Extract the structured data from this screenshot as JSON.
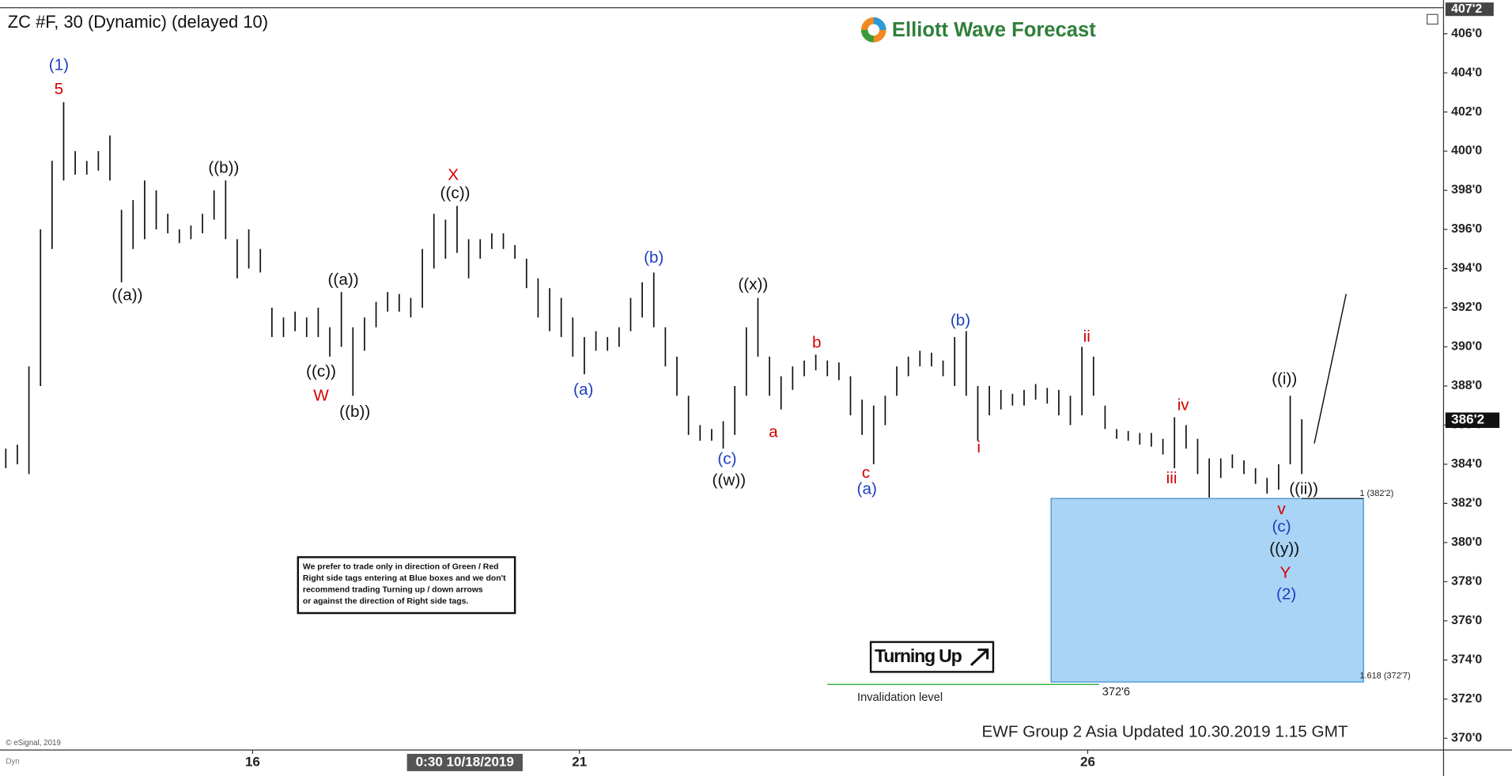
{
  "header": {
    "symbol": "ZC #F, 30 (Dynamic) (delayed 10)",
    "logo": "Elliott Wave Forecast"
  },
  "chart_data": {
    "type": "range",
    "high": [
      384.8,
      385,
      389,
      396,
      399.5,
      402.5,
      400,
      399.5,
      400,
      400.8,
      397,
      397.5,
      398.5,
      398,
      396.8,
      396,
      396.2,
      396.8,
      398,
      398.5,
      395.5,
      396,
      395,
      392,
      391.5,
      391.8,
      391.5,
      392,
      391,
      392.8,
      391,
      391.5,
      392.3,
      392.8,
      392.7,
      392.5,
      395,
      396.8,
      396.5,
      397.2,
      395.5,
      395.5,
      395.8,
      395.8,
      395.2,
      394.5,
      393.5,
      393,
      392.5,
      391.5,
      390.5,
      390.8,
      390.5,
      391,
      392.5,
      393.3,
      393.8,
      391,
      389.5,
      387.5,
      386,
      385.8,
      386.2,
      388,
      391,
      392.5,
      389.5,
      388.5,
      389,
      389.3,
      389.6,
      389.3,
      389.2,
      388.5,
      387.3,
      387,
      387.5,
      389,
      389.5,
      389.8,
      389.7,
      389.3,
      390.5,
      390.8,
      388,
      388,
      387.8,
      387.6,
      387.8,
      388.1,
      387.9,
      387.8,
      387.5,
      390,
      389.5,
      387,
      385.8,
      385.7,
      385.6,
      385.6,
      385.3,
      386.4,
      386,
      385.3,
      384.3,
      384.3,
      384.5,
      384.2,
      383.8,
      383.3,
      384,
      387.5,
      386.3
    ],
    "low": [
      383.8,
      384,
      383.5,
      388,
      395,
      398.5,
      398.8,
      398.8,
      399,
      398.5,
      393.3,
      395,
      395.5,
      396,
      395.8,
      395.3,
      395.5,
      395.8,
      396.5,
      395.5,
      393.5,
      394,
      393.8,
      390.5,
      390.5,
      390.8,
      390.5,
      390.5,
      389.5,
      390,
      387.5,
      389.8,
      391,
      391.8,
      391.8,
      391.5,
      392,
      394,
      394.5,
      394.8,
      393.5,
      394.5,
      395,
      395,
      394.5,
      393,
      391.5,
      390.8,
      390.5,
      389.5,
      388.6,
      389.8,
      389.8,
      390,
      390.8,
      391.5,
      391,
      389,
      387.5,
      385.5,
      385.2,
      385.2,
      384.8,
      385.5,
      387.5,
      389.5,
      387.5,
      386.8,
      387.8,
      388.5,
      388.8,
      388.5,
      388.3,
      386.5,
      385.5,
      384,
      386,
      387.5,
      388.5,
      389,
      389,
      388.5,
      388,
      387.5,
      385.2,
      386.5,
      386.8,
      387,
      387,
      387.3,
      387.1,
      386.5,
      386,
      386.5,
      387.5,
      385.8,
      385.3,
      385.2,
      385,
      384.9,
      384.5,
      383.8,
      384.8,
      383.5,
      382.3,
      383.3,
      383.8,
      383.5,
      383,
      382.5,
      382.7,
      384,
      383.5
    ],
    "color": "#111111",
    "xlim": [
      -0.5,
      124.25
    ],
    "xticks": [
      {
        "value": 21.33,
        "label": "16"
      },
      {
        "value": 49.58,
        "label": "21"
      },
      {
        "value": 93.5,
        "label": "26"
      }
    ],
    "cursor_label": {
      "value": 39.67,
      "label": "0:30 10/18/2019"
    },
    "ylim": [
      369.45,
      407.23
    ],
    "yticks": [
      {
        "value": 406,
        "label": "406'0"
      },
      {
        "value": 404,
        "label": "404'0"
      },
      {
        "value": 402,
        "label": "402'0"
      },
      {
        "value": 400,
        "label": "400'0"
      },
      {
        "value": 398,
        "label": "398'0"
      },
      {
        "value": 396,
        "label": "396'0"
      },
      {
        "value": 394,
        "label": "394'0"
      },
      {
        "value": 392,
        "label": "392'0"
      },
      {
        "value": 390,
        "label": "390'0"
      },
      {
        "value": 388,
        "label": "388'0"
      },
      {
        "value": 386,
        "label": "386'0"
      },
      {
        "value": 384,
        "label": "384'0"
      },
      {
        "value": 382,
        "label": "382'0"
      },
      {
        "value": 380,
        "label": "380'0"
      },
      {
        "value": 378,
        "label": "378'0"
      },
      {
        "value": 376,
        "label": "376'0"
      },
      {
        "value": 374,
        "label": "374'0"
      },
      {
        "value": 372,
        "label": "372'0"
      },
      {
        "value": 370,
        "label": "370'0"
      }
    ],
    "top_marker": {
      "value": 407.25,
      "label": "407'2"
    },
    "last_price": {
      "value": 386.25,
      "label": "386'2"
    },
    "blue_box": {
      "top": 382.25,
      "bottom": 372.875,
      "top_label": "1 (382'2)",
      "bottom_label": "1.618 (372'7)",
      "color": "#a9d4f5"
    },
    "invalidation": {
      "value": 372.75,
      "label": "372'6",
      "text": "Invalidation level",
      "color": "#3cb44b"
    },
    "annotations": [
      {
        "text": "(1)",
        "color": "#1c3fc0"
      },
      {
        "text": "5",
        "color": "#d40000"
      },
      {
        "text": "((a))",
        "color": "#111"
      },
      {
        "text": "((b))",
        "color": "#111"
      },
      {
        "text": "((c))",
        "color": "#111"
      },
      {
        "text": "W",
        "color": "#d40000"
      },
      {
        "text": "((a))",
        "color": "#111"
      },
      {
        "text": "((b))",
        "color": "#111"
      },
      {
        "text": "X",
        "color": "#d40000"
      },
      {
        "text": "((c))",
        "color": "#111"
      },
      {
        "text": "(a)",
        "color": "#1c3fc0"
      },
      {
        "text": "(b)",
        "color": "#1c3fc0"
      },
      {
        "text": "(c)",
        "color": "#1c3fc0"
      },
      {
        "text": "((w))",
        "color": "#111"
      },
      {
        "text": "((x))",
        "color": "#111"
      },
      {
        "text": "a",
        "color": "#d40000"
      },
      {
        "text": "b",
        "color": "#d40000"
      },
      {
        "text": "c",
        "color": "#d40000"
      },
      {
        "text": "(a)",
        "color": "#1c3fc0"
      },
      {
        "text": "(b)",
        "color": "#1c3fc0"
      },
      {
        "text": "i",
        "color": "#d40000"
      },
      {
        "text": "ii",
        "color": "#d40000"
      },
      {
        "text": "iii",
        "color": "#d40000"
      },
      {
        "text": "iv",
        "color": "#d40000"
      },
      {
        "text": "v",
        "color": "#d40000"
      },
      {
        "text": "(c)",
        "color": "#1c3fc0"
      },
      {
        "text": "((y))",
        "color": "#111"
      },
      {
        "text": "Y",
        "color": "#d40000"
      },
      {
        "text": "(2)",
        "color": "#1c3fc0"
      },
      {
        "text": "((i))",
        "color": "#111"
      },
      {
        "text": "((ii))",
        "color": "#111"
      }
    ],
    "footer": "EWF Group 2 Asia Updated 10.30.2019 1.15 GMT",
    "copyright": "© eSignal, 2019",
    "corner": "Dyn"
  },
  "disclaimer": [
    "We prefer to trade only in direction of Green / Red",
    "Right side tags entering at Blue boxes and we don't",
    "recommend trading Turning up / down arrows",
    "or against the direction of Right side tags."
  ],
  "turning_button": "Turning Up"
}
